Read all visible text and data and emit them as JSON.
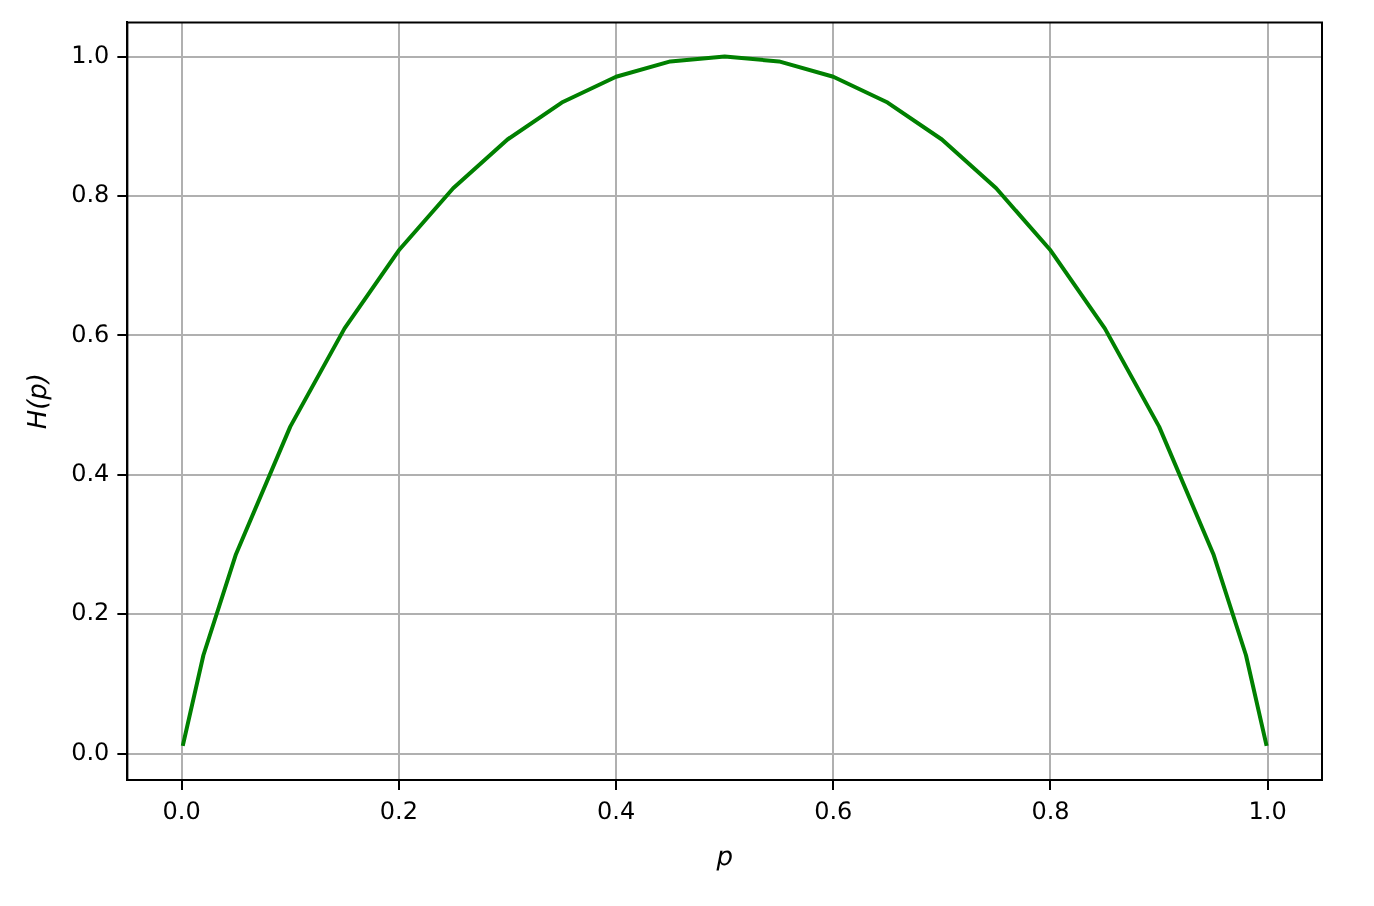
{
  "chart_data": {
    "type": "line",
    "xlabel": "p",
    "ylabel": "H(p)",
    "x": [
      0.001,
      0.02,
      0.05,
      0.1,
      0.15,
      0.2,
      0.25,
      0.3,
      0.35,
      0.4,
      0.45,
      0.5,
      0.55,
      0.6,
      0.65,
      0.7,
      0.75,
      0.8,
      0.85,
      0.9,
      0.95,
      0.98,
      0.999
    ],
    "series": [
      {
        "color": "#008000",
        "values": [
          0.011,
          0.141,
          0.286,
          0.469,
          0.61,
          0.722,
          0.811,
          0.881,
          0.934,
          0.971,
          0.993,
          1.0,
          0.993,
          0.971,
          0.934,
          0.881,
          0.811,
          0.722,
          0.61,
          0.469,
          0.286,
          0.141,
          0.011
        ]
      }
    ],
    "xlim": [
      -0.05,
      1.05
    ],
    "ylim": [
      -0.038,
      1.049
    ],
    "xticks": [
      {
        "value": 0,
        "label": "0.0"
      },
      0.2,
      0.4,
      0.6,
      0.8,
      {
        "value": 1,
        "label": "1.0"
      }
    ],
    "yticks": [
      {
        "value": 0,
        "label": "0.0"
      },
      0.2,
      0.4,
      0.6,
      0.8,
      {
        "value": 1,
        "label": "1.0"
      }
    ],
    "grid": true,
    "marker": "none",
    "line_style": "solid",
    "legend": false
  }
}
